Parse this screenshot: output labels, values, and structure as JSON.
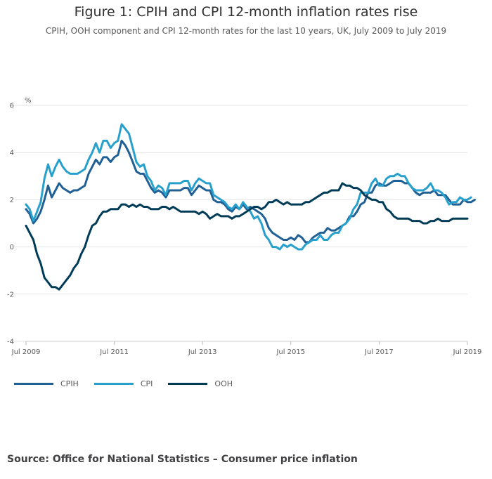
{
  "chart_data": {
    "type": "line",
    "title": "Figure 1: CPIH and CPI 12-month inflation rates rise",
    "subtitle": "CPIH, OOH component and CPI 12-month rates for the last 10 years, UK, July 2009 to July 2019",
    "ylabel": "%",
    "xlabel": "",
    "ylim": [
      -4,
      6
    ],
    "yticks": [
      -4,
      -2,
      0,
      2,
      4,
      6
    ],
    "xlim": [
      2009.5,
      2019.5
    ],
    "xticks": [
      {
        "label": "Jul 2009",
        "value": 2009.5
      },
      {
        "label": "Jul 2011",
        "value": 2011.5
      },
      {
        "label": "Jul 2013",
        "value": 2013.5
      },
      {
        "label": "Jul 2015",
        "value": 2015.5
      },
      {
        "label": "Jul 2017",
        "value": 2017.5
      },
      {
        "label": "Jul 2019",
        "value": 2019.5
      }
    ],
    "grid": true,
    "legend_position": "bottom-left",
    "start": "2009-07",
    "series": [
      {
        "name": "CPIH",
        "color": "#206095",
        "values": [
          1.6,
          1.4,
          1.0,
          1.2,
          1.5,
          2.0,
          2.6,
          2.1,
          2.4,
          2.7,
          2.5,
          2.4,
          2.3,
          2.4,
          2.4,
          2.5,
          2.6,
          3.1,
          3.4,
          3.7,
          3.5,
          3.8,
          3.8,
          3.6,
          3.8,
          3.9,
          4.5,
          4.3,
          4.0,
          3.6,
          3.2,
          3.1,
          3.1,
          2.8,
          2.5,
          2.3,
          2.4,
          2.3,
          2.1,
          2.4,
          2.4,
          2.4,
          2.4,
          2.5,
          2.5,
          2.2,
          2.4,
          2.6,
          2.5,
          2.4,
          2.4,
          2.0,
          1.9,
          1.9,
          1.8,
          1.6,
          1.5,
          1.7,
          1.6,
          1.8,
          1.6,
          1.7,
          1.6,
          1.5,
          1.4,
          1.2,
          0.8,
          0.6,
          0.5,
          0.4,
          0.3,
          0.3,
          0.4,
          0.3,
          0.5,
          0.4,
          0.2,
          0.2,
          0.4,
          0.5,
          0.6,
          0.6,
          0.8,
          0.7,
          0.7,
          0.8,
          0.9,
          1.0,
          1.3,
          1.3,
          1.5,
          1.8,
          1.9,
          2.3,
          2.3,
          2.6,
          2.7,
          2.6,
          2.6,
          2.7,
          2.8,
          2.8,
          2.8,
          2.7,
          2.7,
          2.5,
          2.3,
          2.2,
          2.3,
          2.3,
          2.3,
          2.4,
          2.2,
          2.2,
          2.2,
          2.0,
          1.8,
          1.8,
          1.8,
          2.0,
          1.9,
          1.9,
          2.0
        ]
      },
      {
        "name": "CPI",
        "color": "#27a0cc",
        "values": [
          1.8,
          1.6,
          1.1,
          1.5,
          1.9,
          2.9,
          3.5,
          3.0,
          3.4,
          3.7,
          3.4,
          3.2,
          3.1,
          3.1,
          3.1,
          3.2,
          3.3,
          3.7,
          4.0,
          4.4,
          4.0,
          4.5,
          4.5,
          4.2,
          4.4,
          4.5,
          5.2,
          5.0,
          4.8,
          4.2,
          3.6,
          3.4,
          3.5,
          3.0,
          2.8,
          2.4,
          2.6,
          2.5,
          2.2,
          2.7,
          2.7,
          2.7,
          2.7,
          2.8,
          2.8,
          2.4,
          2.7,
          2.9,
          2.8,
          2.7,
          2.7,
          2.2,
          2.1,
          2.0,
          1.9,
          1.7,
          1.6,
          1.8,
          1.6,
          1.9,
          1.7,
          1.5,
          1.2,
          1.3,
          1.0,
          0.5,
          0.3,
          0.0,
          0.0,
          -0.1,
          0.1,
          0.0,
          0.1,
          0.0,
          -0.1,
          -0.1,
          0.1,
          0.2,
          0.3,
          0.3,
          0.5,
          0.3,
          0.3,
          0.5,
          0.6,
          0.6,
          0.9,
          1.0,
          1.2,
          1.6,
          1.8,
          2.3,
          2.3,
          2.3,
          2.7,
          2.9,
          2.6,
          2.6,
          2.9,
          3.0,
          3.0,
          3.1,
          3.0,
          3.0,
          2.7,
          2.5,
          2.4,
          2.4,
          2.4,
          2.5,
          2.7,
          2.4,
          2.4,
          2.3,
          2.1,
          1.8,
          1.9,
          1.9,
          2.1,
          2.0,
          2.0,
          2.1
        ]
      },
      {
        "name": "OOH",
        "color": "#003c57",
        "values": [
          0.9,
          0.6,
          0.3,
          -0.3,
          -0.7,
          -1.3,
          -1.5,
          -1.7,
          -1.7,
          -1.8,
          -1.6,
          -1.4,
          -1.2,
          -0.9,
          -0.7,
          -0.3,
          0.0,
          0.5,
          0.9,
          1.0,
          1.3,
          1.5,
          1.5,
          1.6,
          1.6,
          1.6,
          1.8,
          1.8,
          1.7,
          1.8,
          1.7,
          1.8,
          1.7,
          1.7,
          1.6,
          1.6,
          1.6,
          1.7,
          1.7,
          1.6,
          1.7,
          1.6,
          1.5,
          1.5,
          1.5,
          1.5,
          1.5,
          1.4,
          1.5,
          1.4,
          1.2,
          1.3,
          1.4,
          1.3,
          1.3,
          1.3,
          1.2,
          1.3,
          1.3,
          1.4,
          1.5,
          1.6,
          1.7,
          1.7,
          1.6,
          1.7,
          1.9,
          1.9,
          2.0,
          1.9,
          1.8,
          1.9,
          1.8,
          1.8,
          1.8,
          1.8,
          1.9,
          1.9,
          2.0,
          2.1,
          2.2,
          2.3,
          2.3,
          2.4,
          2.4,
          2.4,
          2.7,
          2.6,
          2.6,
          2.5,
          2.5,
          2.4,
          2.2,
          2.1,
          2.0,
          2.0,
          1.9,
          1.9,
          1.6,
          1.5,
          1.3,
          1.2,
          1.2,
          1.2,
          1.2,
          1.1,
          1.1,
          1.1,
          1.0,
          1.0,
          1.1,
          1.1,
          1.2,
          1.1,
          1.1,
          1.1,
          1.2,
          1.2,
          1.2,
          1.2,
          1.2
        ]
      }
    ]
  },
  "source": "Source: Office for National Statistics – Consumer price inflation"
}
